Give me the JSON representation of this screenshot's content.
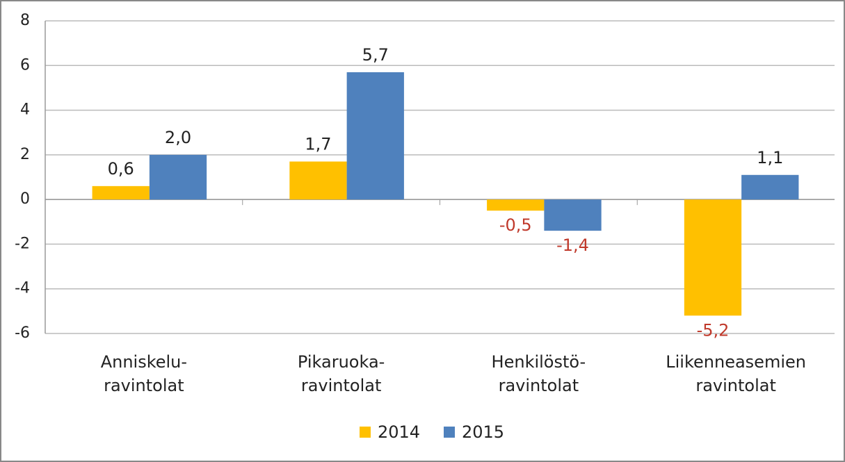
{
  "chart_data": {
    "type": "bar",
    "categories": [
      [
        "Anniskelu-",
        "ravintolat"
      ],
      [
        "Pikaruoka-",
        "ravintolat"
      ],
      [
        "Henkilöstö-",
        "ravintolat"
      ],
      [
        "Liikenneasemien",
        "ravintolat"
      ]
    ],
    "series": [
      {
        "name": "2014",
        "color": "#ffc000",
        "values": [
          0.6,
          1.7,
          -0.5,
          -5.2
        ],
        "value_labels": [
          "0,6",
          "1,7",
          "-0,5",
          "-5,2"
        ]
      },
      {
        "name": "2015",
        "color": "#4f81bd",
        "values": [
          2.0,
          5.7,
          -1.4,
          1.1
        ],
        "value_labels": [
          "2,0",
          "5,7",
          "-1,4",
          "1,1"
        ]
      }
    ],
    "negative_label_color": "#c0392b",
    "ylim": [
      -6,
      8
    ],
    "yticks": [
      -6,
      -4,
      -2,
      0,
      2,
      4,
      6,
      8
    ],
    "grid": true,
    "legend": "bottom"
  }
}
